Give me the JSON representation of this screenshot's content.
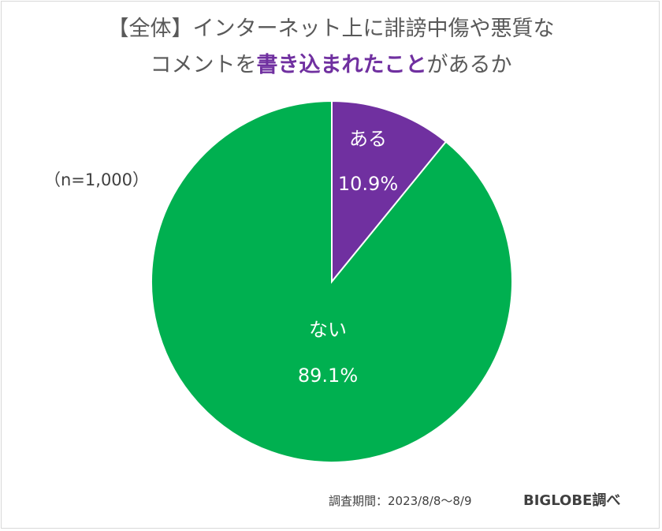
{
  "title": {
    "line1": "【全体】インターネット上に誹謗中傷や悪質な",
    "line2_pre": "コメントを",
    "line2_highlight": "書き込まれたこと",
    "line2_post": "があるか"
  },
  "sample_label": "（n=1,000）",
  "footer": {
    "period": "調査期間：2023/8/8～8/9",
    "brand": "BIGLOBE調べ"
  },
  "chart_data": {
    "type": "pie",
    "categories": [
      "ある",
      "ない"
    ],
    "values": [
      10.9,
      89.1
    ],
    "value_labels": [
      "10.9%",
      "89.1%"
    ],
    "colors": [
      "#7030a0",
      "#00b050"
    ],
    "start": "12 o'clock, clockwise"
  }
}
